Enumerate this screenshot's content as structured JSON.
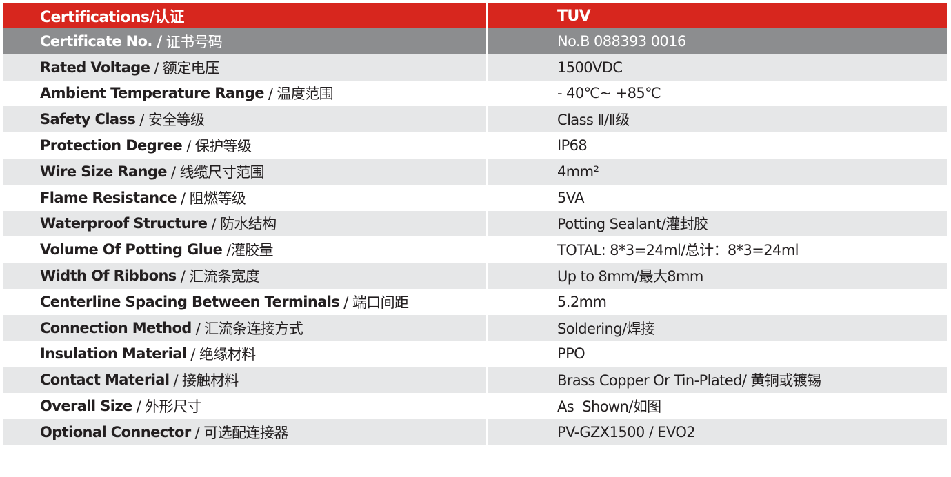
{
  "table": {
    "header": {
      "label": "Certifications/认证",
      "value": "TUV"
    },
    "certificate": {
      "en": "Certificate No. /",
      "cn": "证书号码",
      "value": "No.B 088393 0016"
    },
    "rows": [
      {
        "en": "Rated Voltage",
        "cn": "/ 额定电压",
        "value": "1500VDC"
      },
      {
        "en": "Ambient Temperature Range",
        "cn": "/ 温度范围",
        "value": "- 40℃~ +85℃"
      },
      {
        "en": "Safety Class",
        "cn": "/ 安全等级",
        "value": "Class Ⅱ/Ⅱ级"
      },
      {
        "en": "Protection Degree",
        "cn": "/ 保护等级",
        "value": "IP68"
      },
      {
        "en": "Wire Size Range",
        "cn": "/ 线缆尺寸范围",
        "value": "4mm²"
      },
      {
        "en": "Flame Resistance",
        "cn": "/ 阻燃等级",
        "value": "5VA"
      },
      {
        "en": "Waterproof Structure",
        "cn": "/ 防水结构",
        "value": "Potting Sealant/灌封胶"
      },
      {
        "en": "Volume Of Potting Glue",
        "cn": "/灌胶量",
        "value": "TOTAL: 8*3=24ml/总计：8*3=24ml"
      },
      {
        "en": "Width Of Ribbons",
        "cn": "/ 汇流条宽度",
        "value": "Up to 8mm/最大8mm"
      },
      {
        "en": "Centerline Spacing Between Terminals",
        "cn": "/ 端口间距",
        "value": "5.2mm"
      },
      {
        "en": "Connection Method",
        "cn": "/ 汇流条连接方式",
        "value": "Soldering/焊接"
      },
      {
        "en": "Insulation Material",
        "cn": "/ 绝缘材料",
        "value": "PPO"
      },
      {
        "en": "Contact Material",
        "cn": "/ 接触材料",
        "value": "Brass Copper Or Tin-Plated/ 黄铜或镀锡"
      },
      {
        "en": "Overall Size",
        "cn": "/ 外形尺寸",
        "value": "As  Shown/如图"
      },
      {
        "en": "Optional Connector",
        "cn": "/ 可选配连接器",
        "value": "PV-GZX1500 / EVO2"
      }
    ]
  }
}
